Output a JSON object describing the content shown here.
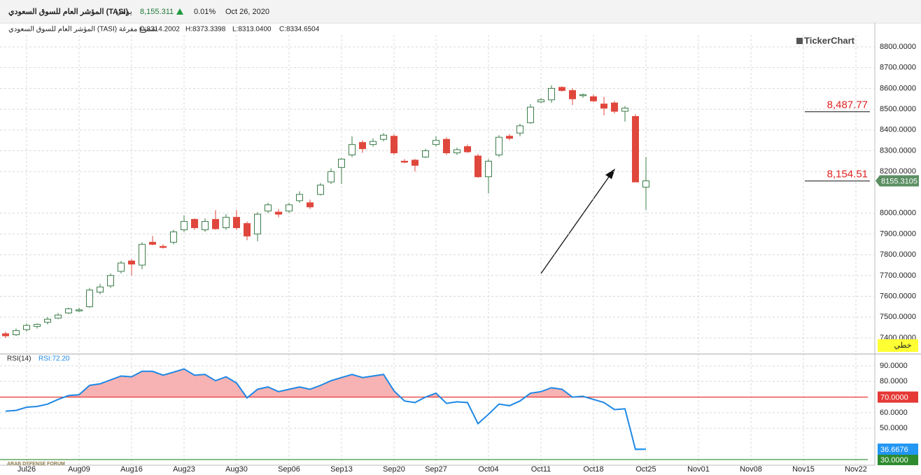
{
  "header": {
    "name": "المؤشر العام للسوق السعودي (TASI)",
    "period": "يومي",
    "price": "8,155.311",
    "change": "0.01%",
    "date": "Oct 26, 2020",
    "info_name": "المؤشر العام للسوق السعودي (TASI) شموع مفرغة",
    "ohlc_labels": [
      "O:8314.2002",
      "H:8373.3398",
      "L:8313.0400",
      "C:8334.6504"
    ],
    "logo": "TickerChart",
    "watermark": "ARAB DEFENSE FORUM"
  },
  "chart_data": [
    {
      "type": "candlestick",
      "up_color": "#3c7d4a",
      "down_color": "#e0473c",
      "grid": true,
      "categories": [
        null,
        null,
        "Jul26",
        null,
        null,
        null,
        null,
        "Aug09",
        null,
        null,
        null,
        null,
        "Aug16",
        null,
        null,
        null,
        null,
        "Aug23",
        null,
        null,
        null,
        null,
        "Aug30",
        null,
        null,
        null,
        null,
        "Sep06",
        null,
        null,
        null,
        null,
        "Sep13",
        null,
        null,
        null,
        null,
        "Sep20",
        null,
        null,
        null,
        "Sep27",
        null,
        null,
        null,
        null,
        "Oct04",
        null,
        null,
        null,
        null,
        "Oct11",
        null,
        null,
        null,
        null,
        "Oct18",
        null,
        null,
        null,
        null,
        "Oct25",
        null,
        null,
        null,
        null,
        "Nov01",
        null,
        null,
        null,
        null,
        "Nov08",
        null,
        null,
        null,
        null,
        "Nov15",
        null,
        null,
        null,
        null,
        "Nov22"
      ],
      "open": [
        7420,
        7415,
        7440,
        7455,
        7475,
        7495,
        7520,
        7530,
        7550,
        7620,
        7650,
        7720,
        7770,
        7750,
        7860,
        7840,
        7860,
        7920,
        7970,
        7920,
        7970,
        7930,
        7980,
        7950,
        7900,
        8010,
        8005,
        8010,
        8060,
        8050,
        8090,
        8150,
        8220,
        8280,
        8340,
        8330,
        8355,
        8370,
        8250,
        8255,
        8270,
        8330,
        8355,
        8290,
        8320,
        8275,
        8175,
        8280,
        8370,
        8385,
        8435,
        8535,
        8545,
        8605,
        8590,
        8565,
        8560,
        8525,
        8530,
        8490,
        8465,
        8125,
        null,
        null,
        null,
        null,
        null,
        null,
        null,
        null,
        null,
        null,
        null,
        null,
        null,
        null,
        null,
        null,
        null,
        null,
        null,
        null
      ],
      "high": [
        7430,
        7445,
        7470,
        7470,
        7500,
        7520,
        7545,
        7545,
        7640,
        7660,
        7710,
        7770,
        7780,
        7860,
        7890,
        7850,
        7920,
        7990,
        7975,
        7975,
        8015,
        7995,
        8015,
        7960,
        8005,
        8050,
        8020,
        8050,
        8105,
        8065,
        8145,
        8215,
        8265,
        8370,
        8350,
        8360,
        8385,
        8380,
        8260,
        8260,
        8310,
        8370,
        8365,
        8315,
        8330,
        8285,
        8260,
        8375,
        8380,
        8430,
        8525,
        8555,
        8615,
        8610,
        8600,
        8575,
        8570,
        8560,
        8540,
        8515,
        8475,
        8270,
        null,
        null,
        null,
        null,
        null,
        null,
        null,
        null,
        null,
        null,
        null,
        null,
        null,
        null,
        null,
        null,
        null,
        null,
        null,
        null
      ],
      "low": [
        7400,
        7410,
        7430,
        7445,
        7465,
        7490,
        7515,
        7525,
        7545,
        7610,
        7640,
        7710,
        7700,
        7730,
        7845,
        7830,
        7850,
        7910,
        7920,
        7910,
        7920,
        7920,
        7920,
        7870,
        7865,
        8000,
        7980,
        8000,
        8050,
        8020,
        8085,
        8140,
        8140,
        8270,
        8290,
        8320,
        8345,
        8280,
        8240,
        8200,
        8265,
        8320,
        8280,
        8280,
        8290,
        8170,
        8095,
        8270,
        8350,
        8370,
        8430,
        8530,
        8530,
        8585,
        8520,
        8555,
        8535,
        8470,
        8480,
        8440,
        8150,
        8015,
        null,
        null,
        null,
        null,
        null,
        null,
        null,
        null,
        null,
        null,
        null,
        null,
        null,
        null,
        null,
        null,
        null,
        null,
        null,
        null
      ],
      "close": [
        7410,
        7435,
        7460,
        7465,
        7490,
        7510,
        7540,
        7535,
        7630,
        7645,
        7700,
        7760,
        7755,
        7850,
        7850,
        7835,
        7910,
        7960,
        7930,
        7960,
        7925,
        7980,
        7930,
        7890,
        7995,
        8040,
        7995,
        8040,
        8090,
        8030,
        8135,
        8200,
        8260,
        8330,
        8310,
        8345,
        8375,
        8290,
        8245,
        8230,
        8300,
        8350,
        8290,
        8305,
        8295,
        8175,
        8250,
        8365,
        8360,
        8420,
        8510,
        8545,
        8600,
        8590,
        8550,
        8570,
        8540,
        8505,
        8490,
        8505,
        8150,
        8155.3105,
        null,
        null,
        null,
        null,
        null,
        null,
        null,
        null,
        null,
        null,
        null,
        null,
        null,
        null,
        null,
        null,
        null,
        null,
        null,
        null
      ],
      "ylim": [
        7326,
        8857
      ],
      "yticks": [
        {
          "value": 8800,
          "label": "8800.0000"
        },
        {
          "value": 8700,
          "label": "8700.0000"
        },
        {
          "value": 8600,
          "label": "8600.0000"
        },
        {
          "value": 8500,
          "label": "8500.0000"
        },
        {
          "value": 8400,
          "label": "8400.0000"
        },
        {
          "value": 8300,
          "label": "8300.0000"
        },
        {
          "value": 8200,
          "label": "8200.0000"
        },
        {
          "value": 8000,
          "label": "8000.0000"
        },
        {
          "value": 7900,
          "label": "7900.0000"
        },
        {
          "value": 7800,
          "label": "7800.0000"
        },
        {
          "value": 7700,
          "label": "7700.0000"
        },
        {
          "value": 7600,
          "label": "7600.0000"
        },
        {
          "value": 7500,
          "label": "7500.0000"
        },
        {
          "value": 7400,
          "label": "7400.0000"
        }
      ],
      "price_lines": [
        {
          "value": 8487.77,
          "label": "8,487.77",
          "color": "#e02020"
        },
        {
          "value": 8154.51,
          "label": "8,154.51",
          "color": "#e02020"
        }
      ],
      "last_price": {
        "value": 8155.3105,
        "label": "8155.3105",
        "color": "#5b8f63"
      },
      "scale_label": "خطي"
    },
    {
      "type": "line",
      "indicator": "RSI(14)",
      "grid": true,
      "series": [
        {
          "name": "RSI:72.20",
          "color": "#1e88e5",
          "values": [
            61,
            61.5,
            63.5,
            64,
            65.5,
            68.5,
            71,
            71.5,
            77.5,
            78.5,
            81,
            83.5,
            83,
            86.5,
            86.5,
            84,
            86,
            88,
            84,
            84.5,
            80.5,
            83,
            79,
            69.5,
            75,
            76.5,
            73.5,
            75,
            76.5,
            75,
            77.5,
            80.5,
            82.5,
            84.5,
            82.5,
            83.5,
            84.5,
            74,
            67.5,
            66.5,
            70,
            72.5,
            66,
            67,
            66.5,
            53,
            59,
            65.5,
            64.5,
            67.5,
            72.5,
            73.5,
            76,
            75,
            70,
            70.5,
            68.5,
            66.5,
            62,
            62.5,
            36.5,
            36.6676,
            null,
            null,
            null,
            null,
            null,
            null,
            null,
            null,
            null,
            null,
            null,
            null,
            null,
            null,
            null,
            null,
            null,
            null,
            null,
            null
          ]
        }
      ],
      "ylim": [
        26.4,
        96.7
      ],
      "yticks": [
        {
          "value": 90,
          "label": "90.0000"
        },
        {
          "value": 80,
          "label": "80.0000"
        },
        {
          "value": 60,
          "label": "60.0000"
        },
        {
          "value": 50,
          "label": "50.0000"
        }
      ],
      "levels": [
        {
          "value": 70,
          "label": "70.0000",
          "color": "#e53935"
        },
        {
          "value": 30,
          "label": "30.0000",
          "color": "#2e8b2e"
        }
      ],
      "overbought_fill": "#f7b3b3",
      "last_value": {
        "value": 36.6676,
        "label": "36.6676",
        "color": "#2196f3"
      }
    }
  ]
}
